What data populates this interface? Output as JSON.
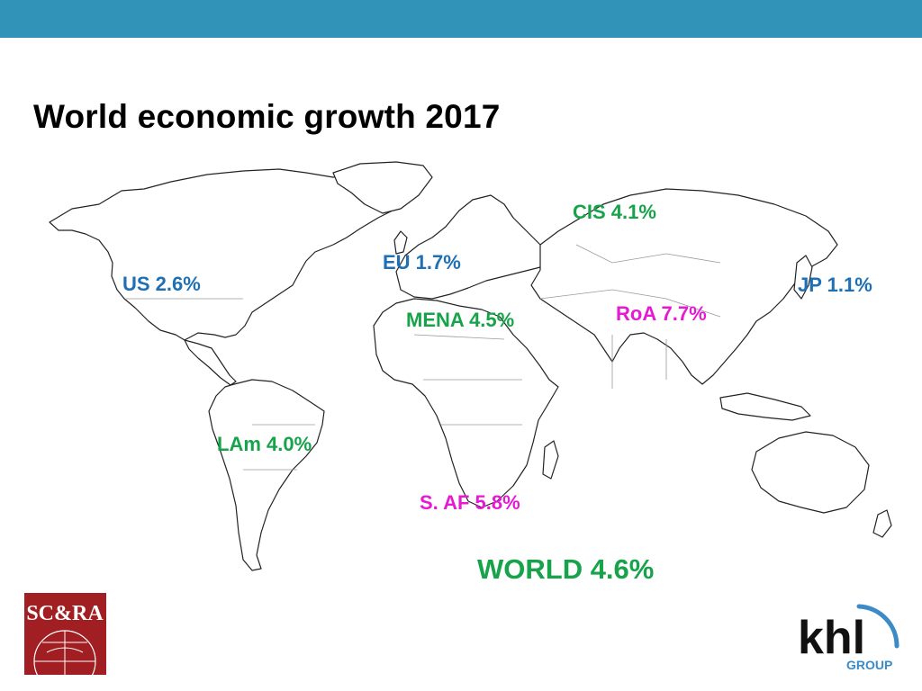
{
  "slide": {
    "title": "World economic growth 2017",
    "header_bar_color": "#3193b8"
  },
  "map": {
    "projection": "world-outline",
    "regions": [
      {
        "id": "us",
        "label": "US 2.6%",
        "color": "#1f6fb5"
      },
      {
        "id": "eu",
        "label": "EU 1.7%",
        "color": "#1f6fb5"
      },
      {
        "id": "cis",
        "label": "CIS 4.1%",
        "color": "#16a34a"
      },
      {
        "id": "jp",
        "label": "JP 1.1%",
        "color": "#1f6fb5"
      },
      {
        "id": "mena",
        "label": "MENA 4.5%",
        "color": "#16a34a"
      },
      {
        "id": "roa",
        "label": "RoA 7.7%",
        "color": "#e61ad2"
      },
      {
        "id": "lam",
        "label": "LAm 4.0%",
        "color": "#16a34a"
      },
      {
        "id": "saf",
        "label": "S. AF 5.8%",
        "color": "#e61ad2"
      }
    ],
    "world": {
      "label": "WORLD 4.6%",
      "color": "#16a34a"
    }
  },
  "logos": {
    "left": {
      "name": "SC&RA logo",
      "text": "SC&RA",
      "color": "#a11e23"
    },
    "right": {
      "name": "khl group logo",
      "text": "khl",
      "subtext": "GROUP",
      "color": "#111111",
      "accent": "#3b8bc9"
    }
  }
}
